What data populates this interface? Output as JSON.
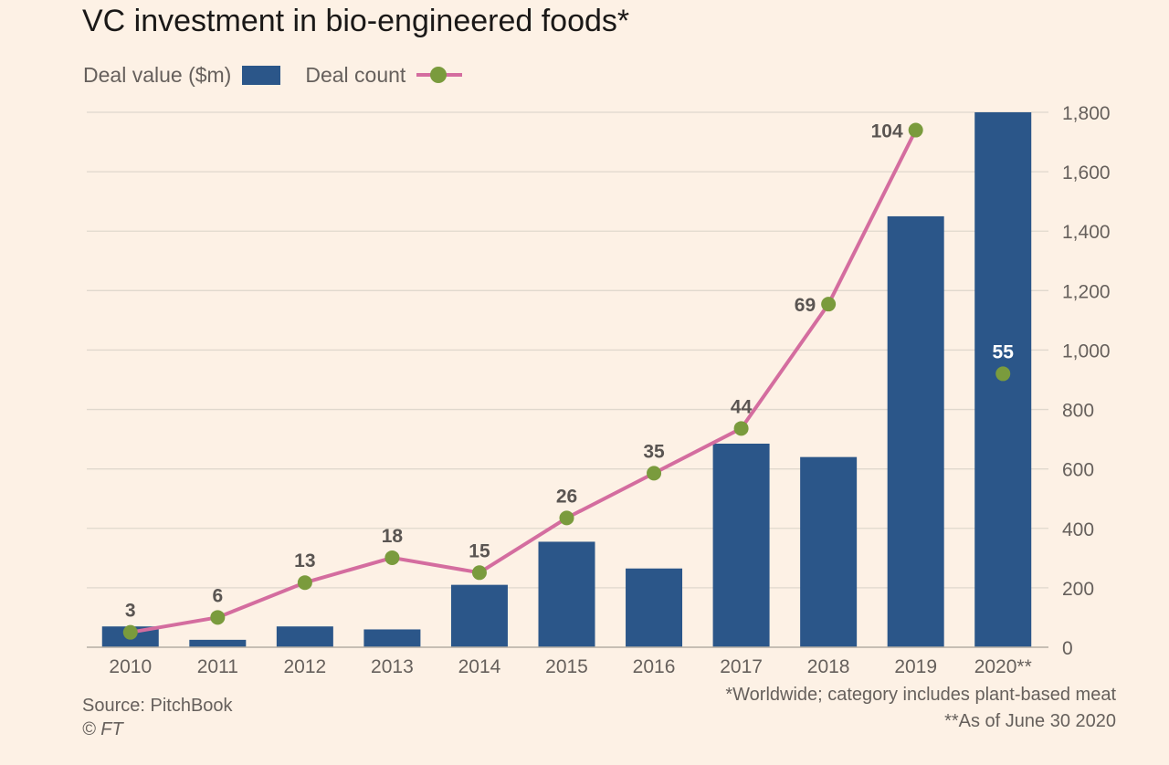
{
  "chart_data": {
    "type": "bar",
    "title": "VC investment in bio-engineered foods*",
    "categories": [
      "2010",
      "2011",
      "2012",
      "2013",
      "2014",
      "2015",
      "2016",
      "2017",
      "2018",
      "2019",
      "2020**"
    ],
    "series": [
      {
        "name": "Deal value ($m)",
        "type": "bar",
        "axis": "right",
        "values": [
          70,
          25,
          70,
          60,
          210,
          355,
          265,
          685,
          640,
          1450,
          1800
        ]
      },
      {
        "name": "Deal count",
        "type": "line",
        "values": [
          3,
          6,
          13,
          18,
          15,
          26,
          35,
          44,
          69,
          104,
          55
        ],
        "labels": [
          "3",
          "6",
          "13",
          "18",
          "15",
          "26",
          "35",
          "44",
          "69",
          "104",
          "55"
        ],
        "last_point_unconnected": true
      }
    ],
    "y_ticks": [
      "0",
      "200",
      "400",
      "600",
      "800",
      "1,000",
      "1,200",
      "1,400",
      "1,600",
      "1,800"
    ],
    "ylim": [
      0,
      1800
    ],
    "count_scale": [
      0,
      104
    ],
    "grid": true,
    "legend_position": "top-left",
    "colors": {
      "bar": "#2b5689",
      "line": "#d46d9f",
      "marker": "#7a9b3d",
      "grid": "#e0d8cd",
      "axis_text": "#66605c",
      "label_dark": "#5a5552",
      "label_light": "#ffffff"
    }
  },
  "legend": {
    "bar_label": "Deal value ($m)",
    "line_label": "Deal count"
  },
  "source": "Source: PitchBook",
  "copyright": "© FT",
  "notes": [
    "*Worldwide; category includes plant-based meat",
    "**As of June 30 2020"
  ]
}
